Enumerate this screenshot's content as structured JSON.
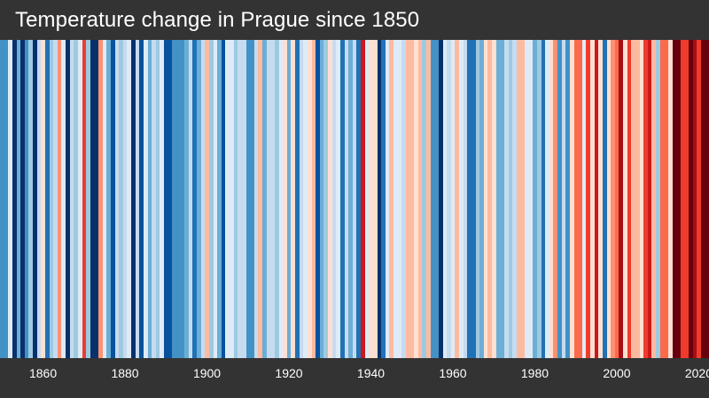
{
  "header": {
    "title": "Temperature change in Prague since 1850"
  },
  "colors": {
    "background": "#333333",
    "text": "#ffffff"
  },
  "chart_data": {
    "type": "heatmap",
    "title": "Temperature change in Prague since 1850",
    "subtitle": "",
    "xlabel": "",
    "ylabel": "",
    "x_range": [
      1850,
      2025
    ],
    "x_ticks": [
      1860,
      1880,
      1900,
      1920,
      1940,
      1960,
      1980,
      2000,
      2020
    ],
    "grid": false,
    "legend": "none",
    "encoding": "Each vertical stripe is one year; color encodes annual temperature anomaly (blue = cooler, red = warmer).",
    "palette": [
      "#08306b",
      "#08519c",
      "#2171b5",
      "#4292c6",
      "#6baed6",
      "#9ecae1",
      "#c6dbef",
      "#deebf7",
      "#fee0d2",
      "#fcbba1",
      "#fc9272",
      "#fb6a4a",
      "#ef3b2c",
      "#cb181d",
      "#a50f15",
      "#67000d"
    ],
    "stripes": [
      "#4292c6",
      "#4292c6",
      "#deebf7",
      "#08306b",
      "#6baed6",
      "#08306b",
      "#4292c6",
      "#9ecae1",
      "#08306b",
      "#c6dbef",
      "#fee0d2",
      "#2171b5",
      "#9ecae1",
      "#c6dbef",
      "#fc9272",
      "#deebf7",
      "#08306b",
      "#c6dbef",
      "#9ecae1",
      "#deebf7",
      "#ef3b2c",
      "#9ecae1",
      "#08306b",
      "#08306b",
      "#fc9272",
      "#deebf7",
      "#6baed6",
      "#08519c",
      "#c6dbef",
      "#9ecae1",
      "#c6dbef",
      "#deebf7",
      "#08306b",
      "#c6dbef",
      "#08519c",
      "#deebf7",
      "#6baed6",
      "#c6dbef",
      "#9ecae1",
      "#deebf7",
      "#08519c",
      "#08519c",
      "#4292c6",
      "#4292c6",
      "#4292c6",
      "#6baed6",
      "#c6dbef",
      "#2171b5",
      "#6baed6",
      "#c6dbef",
      "#fcbba1",
      "#9ecae1",
      "#deebf7",
      "#6baed6",
      "#08519c",
      "#deebf7",
      "#deebf7",
      "#9ecae1",
      "#c6dbef",
      "#c6dbef",
      "#4292c6",
      "#4292c6",
      "#c6dbef",
      "#fcbba1",
      "#6baed6",
      "#c6dbef",
      "#c6dbef",
      "#9ecae1",
      "#deebf7",
      "#fee0d2",
      "#6baed6",
      "#fee0d2",
      "#2171b5",
      "#c6dbef",
      "#deebf7",
      "#fee0d2",
      "#fcbba1",
      "#08519c",
      "#6baed6",
      "#9ecae1",
      "#fee0d2",
      "#c6dbef",
      "#deebf7",
      "#2171b5",
      "#c6dbef",
      "#6baed6",
      "#c6dbef",
      "#2171b5",
      "#cb181d",
      "#deebf7",
      "#fee0d2",
      "#fee0d2",
      "#08306b",
      "#2171b5",
      "#deebf7",
      "#fcbba1",
      "#deebf7",
      "#deebf7",
      "#c6dbef",
      "#fcbba1",
      "#fcbba1",
      "#fee0d2",
      "#fcbba1",
      "#9ecae1",
      "#fcbba1",
      "#4292c6",
      "#4292c6",
      "#08306b",
      "#deebf7",
      "#c6dbef",
      "#deebf7",
      "#fcbba1",
      "#deebf7",
      "#c6dbef",
      "#2171b5",
      "#2171b5",
      "#9ecae1",
      "#6baed6",
      "#fee0d2",
      "#fcbba1",
      "#fee0d2",
      "#6baed6",
      "#6baed6",
      "#c6dbef",
      "#9ecae1",
      "#c6dbef",
      "#fcbba1",
      "#fcbba1",
      "#deebf7",
      "#deebf7",
      "#6baed6",
      "#9ecae1",
      "#2171b5",
      "#deebf7",
      "#fee0d2",
      "#fc9272",
      "#4292c6",
      "#c6dbef",
      "#4292c6",
      "#fee0d2",
      "#fb6a4a",
      "#fb6a4a",
      "#deebf7",
      "#ef3b2c",
      "#fee0d2",
      "#cb181d",
      "#fee0d2",
      "#2171b5",
      "#fee0d2",
      "#fc9272",
      "#fb6a4a",
      "#a50f15",
      "#fee0d2",
      "#ef3b2c",
      "#fcbba1",
      "#fcbba1",
      "#fee0d2",
      "#ef3b2c",
      "#cb181d",
      "#fcbba1",
      "#9ecae1",
      "#fb6a4a",
      "#fb6a4a",
      "#fee0d2",
      "#67000d",
      "#67000d",
      "#ef3b2c",
      "#ef3b2c",
      "#67000d",
      "#a50f15",
      "#ef3b2c",
      "#67000d",
      "#67000d"
    ]
  }
}
